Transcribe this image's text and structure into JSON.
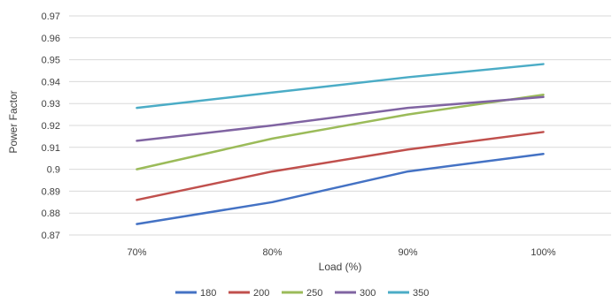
{
  "chart_data": {
    "type": "line",
    "categories": [
      "70%",
      "80%",
      "90%",
      "100%"
    ],
    "xlabel": "Load (%)",
    "ylabel": "Power Factor",
    "ylim": [
      0.87,
      0.97
    ],
    "yticks": [
      "0.87",
      "0.88",
      "0.89",
      "0.9",
      "0.91",
      "0.92",
      "0.93",
      "0.94",
      "0.95",
      "0.96",
      "0.97"
    ],
    "grid": true,
    "legend_position": "bottom",
    "series": [
      {
        "name": "180",
        "color": "#4472C4",
        "values": [
          0.875,
          0.885,
          0.899,
          0.907
        ]
      },
      {
        "name": "200",
        "color": "#C0504D",
        "values": [
          0.886,
          0.899,
          0.909,
          0.917
        ]
      },
      {
        "name": "250",
        "color": "#9BBB59",
        "values": [
          0.9,
          0.914,
          0.925,
          0.934
        ]
      },
      {
        "name": "300",
        "color": "#8064A2",
        "values": [
          0.913,
          0.92,
          0.928,
          0.933
        ]
      },
      {
        "name": "350",
        "color": "#4BACC6",
        "values": [
          0.928,
          0.935,
          0.942,
          0.948
        ]
      }
    ]
  }
}
